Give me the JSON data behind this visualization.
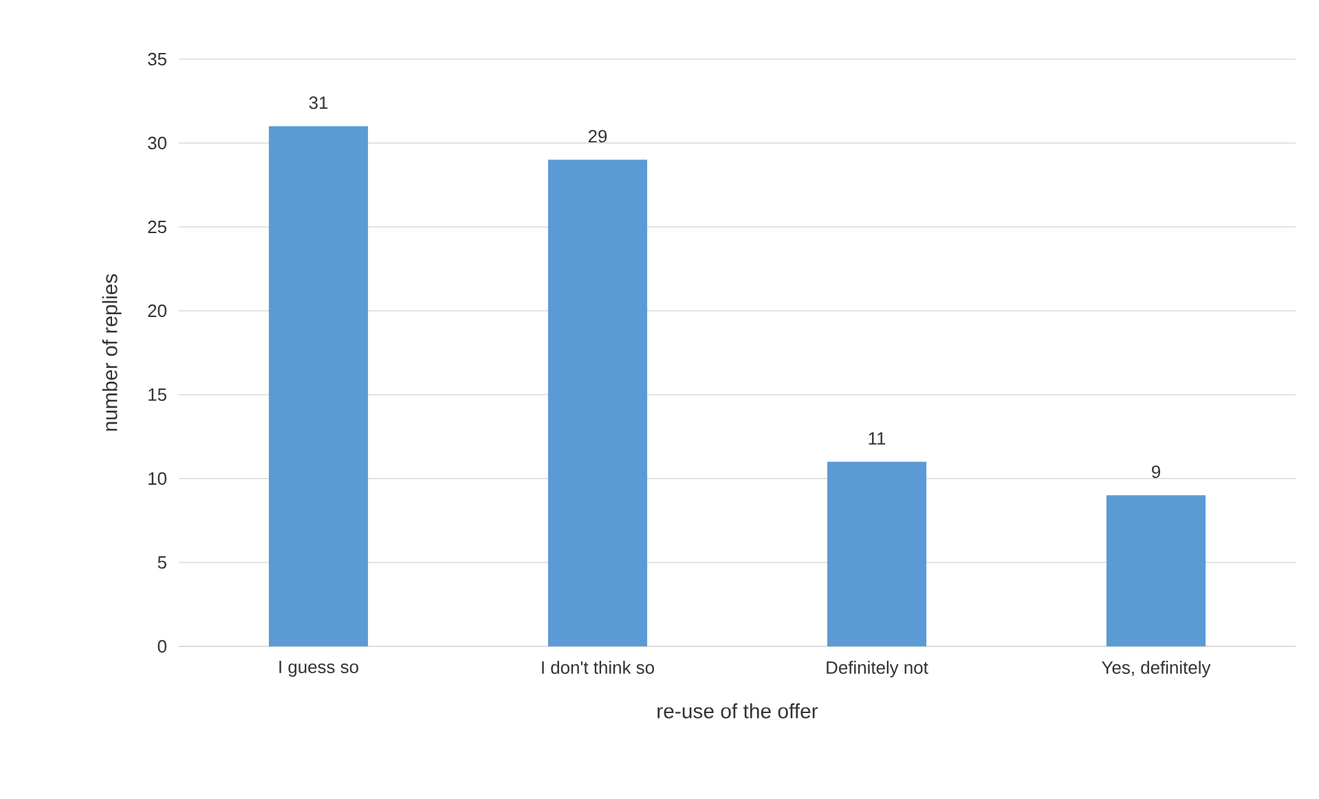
{
  "chart_data": {
    "type": "bar",
    "xlabel": "re-use of the offer",
    "ylabel": "number of replies",
    "categories": [
      "I guess so",
      "I don't think so",
      "Definitely not",
      "Yes, definitely"
    ],
    "values": [
      31,
      29,
      11,
      9
    ],
    "color": "#5b9bd5",
    "ylim": [
      0,
      35
    ],
    "yticks": [
      0,
      5,
      10,
      15,
      20,
      25,
      30,
      35
    ],
    "grid": "y",
    "data_labels": true
  }
}
